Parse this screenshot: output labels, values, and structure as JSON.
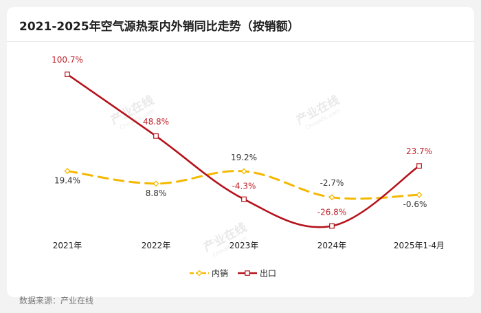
{
  "title": "2021-2025年空气源热泵内外销同比走势（按销额）",
  "source": "数据来源：产业在线",
  "watermark": {
    "cn": "产业在线",
    "en": "ChinaIOL.com"
  },
  "colors": {
    "domestic": "#F5B800",
    "export": "#B5121B",
    "label_export": "#C0232B",
    "label_domestic": "#333333"
  },
  "chart_data": {
    "type": "line",
    "title": "2021-2025年空气源热泵内外销同比走势（按销额）",
    "categories": [
      "2021年",
      "2022年",
      "2023年",
      "2024年",
      "2025年1-4月"
    ],
    "series": [
      {
        "name": "内销",
        "values": [
          19.4,
          8.8,
          19.2,
          -2.7,
          -0.6
        ],
        "labels": [
          "19.4%",
          "8.8%",
          "19.2%",
          "-2.7%",
          "-0.6%"
        ],
        "style": "dashed"
      },
      {
        "name": "出口",
        "values": [
          100.7,
          48.8,
          -4.3,
          -26.8,
          23.7
        ],
        "labels": [
          "100.7%",
          "48.8%",
          "-4.3%",
          "-26.8%",
          "23.7%"
        ],
        "style": "solid"
      }
    ],
    "ylim": [
      -30,
      110
    ],
    "legend": "bottom",
    "grid": false
  }
}
